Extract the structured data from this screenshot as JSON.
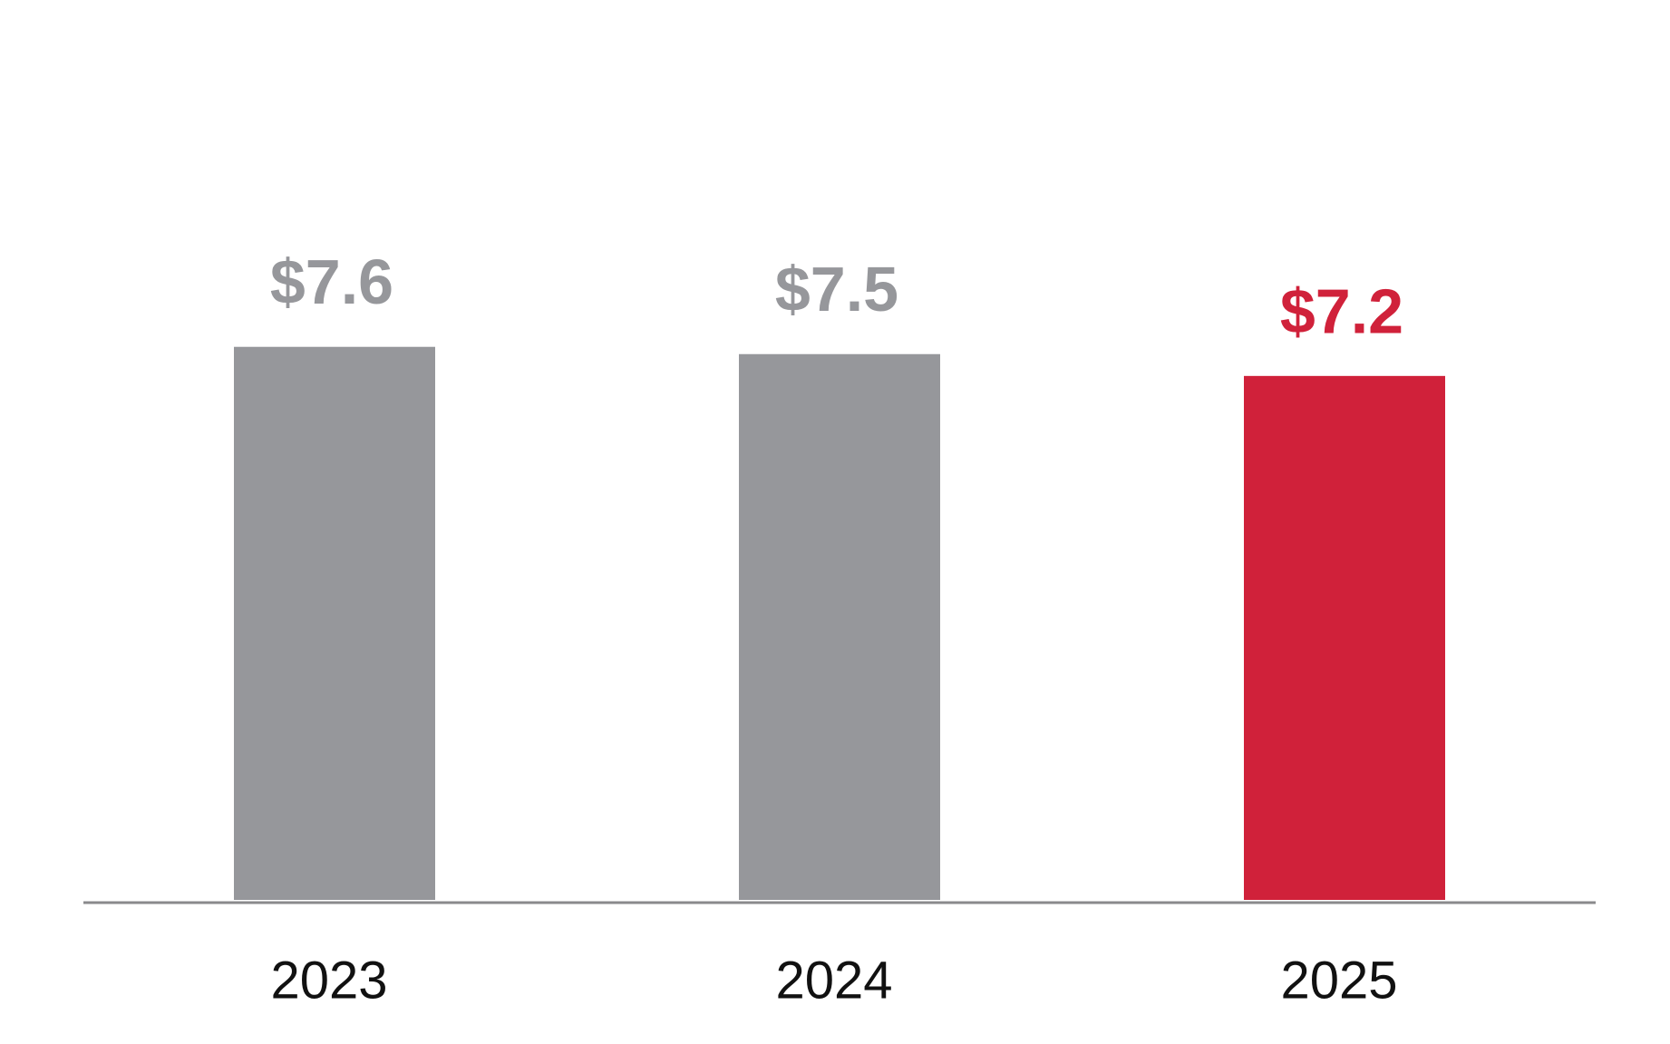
{
  "chart_data": {
    "type": "bar",
    "categories": [
      "2023",
      "2024",
      "2025"
    ],
    "values": [
      7.6,
      7.5,
      7.2
    ],
    "value_labels": [
      "$7.6",
      "$7.5",
      "$7.2"
    ],
    "colors": [
      "#96979b",
      "#96979b",
      "#d0213a"
    ]
  }
}
